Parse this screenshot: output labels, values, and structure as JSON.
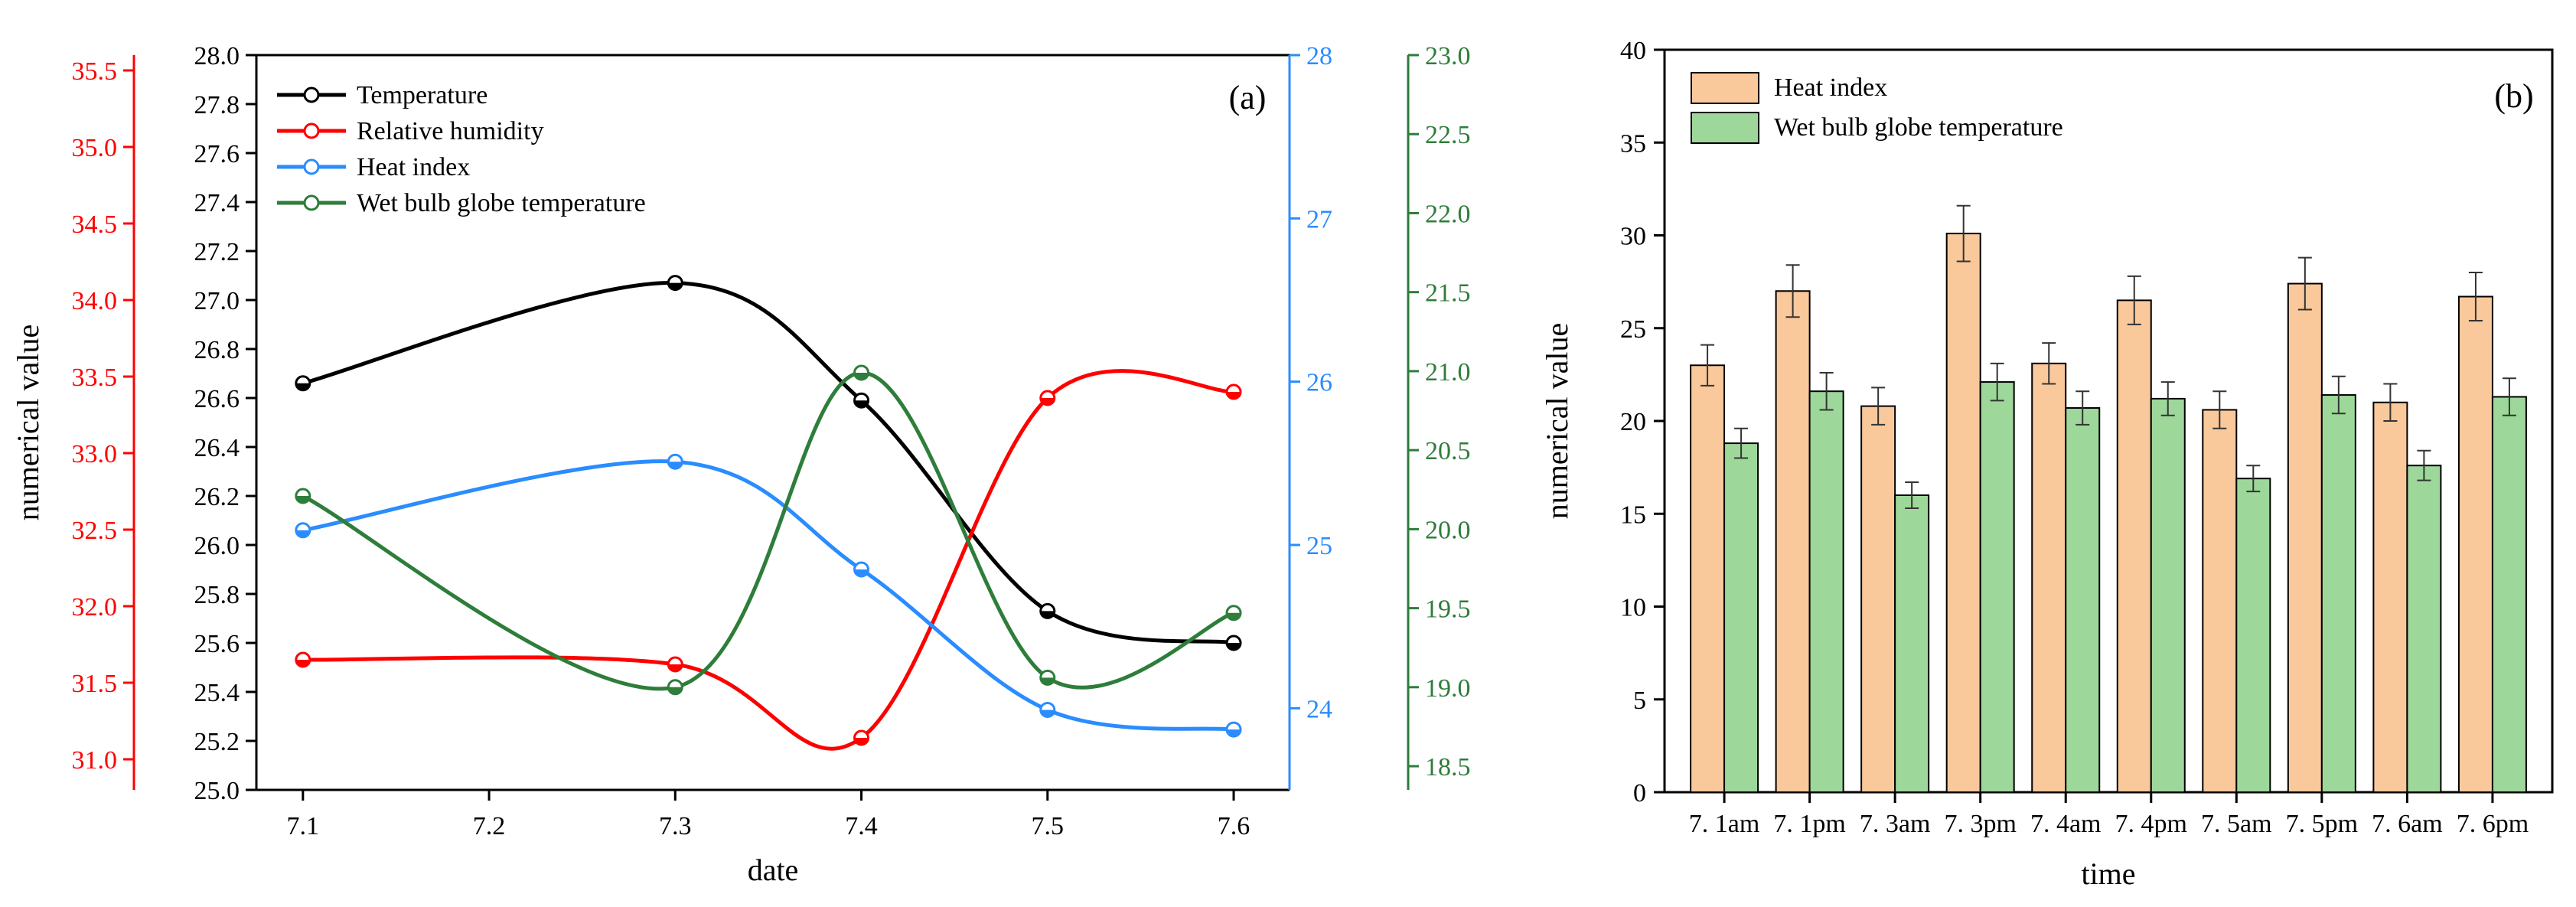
{
  "chart_data": [
    {
      "id": "a",
      "type": "line",
      "panel_label": "(a)",
      "xlabel": "date",
      "ylabel": "numerical value",
      "categories": [
        "7.1",
        "7.3",
        "7.4",
        "7.5",
        "7.6"
      ],
      "x_tick_labels": [
        "7.1",
        "7.2",
        "7.3",
        "7.4",
        "7.5",
        "7.6"
      ],
      "x_tick_values": [
        0,
        1,
        2,
        3,
        4,
        5
      ],
      "x_point_positions": [
        0,
        2,
        3,
        4,
        5
      ],
      "xlim": [
        -0.25,
        5.3
      ],
      "axes": {
        "temperature": {
          "color": "#000000",
          "ylim": [
            25.0,
            28.0
          ],
          "ticks": [
            "25.0",
            "25.2",
            "25.4",
            "25.6",
            "25.8",
            "26.0",
            "26.2",
            "26.4",
            "26.6",
            "26.8",
            "27.0",
            "27.2",
            "27.4",
            "27.6",
            "27.8",
            "28.0"
          ]
        },
        "humidity": {
          "color": "#ff0000",
          "ylim": [
            30.8,
            35.6
          ],
          "ticks": [
            "31.0",
            "31.5",
            "32.0",
            "32.5",
            "33.0",
            "33.5",
            "34.0",
            "34.5",
            "35.0",
            "35.5"
          ]
        },
        "heat_index": {
          "color": "#2a8cff",
          "ylim": [
            23.5,
            28.0
          ],
          "ticks": [
            "24",
            "25",
            "26",
            "27",
            "28"
          ]
        },
        "wbgt": {
          "color": "#2e7d3a",
          "ylim": [
            18.35,
            23.0
          ],
          "ticks": [
            "18.5",
            "19.0",
            "19.5",
            "20.0",
            "20.5",
            "21.0",
            "21.5",
            "22.0",
            "22.5",
            "23.0"
          ]
        }
      },
      "series": [
        {
          "key": "temperature",
          "name": "Temperature",
          "color": "#000000",
          "values": [
            26.66,
            27.07,
            26.59,
            25.73,
            25.6
          ]
        },
        {
          "key": "humidity",
          "name": "Relative humidity",
          "color": "#ff0000",
          "values": [
            31.65,
            31.62,
            31.14,
            33.36,
            33.4
          ]
        },
        {
          "key": "heat_index",
          "name": "Heat index",
          "color": "#2a8cff",
          "values": [
            25.09,
            25.51,
            24.85,
            23.99,
            23.87
          ]
        },
        {
          "key": "wbgt",
          "name": "Wet bulb globe temperature",
          "color": "#2e7d3a",
          "values": [
            20.21,
            19.0,
            20.99,
            19.06,
            19.47
          ]
        }
      ]
    },
    {
      "id": "b",
      "type": "bar",
      "panel_label": "(b)",
      "xlabel": "time",
      "ylabel": "numerical value",
      "categories": [
        "7. 1am",
        "7. 1pm",
        "7. 3am",
        "7. 3pm",
        "7. 4am",
        "7. 4pm",
        "7. 5am",
        "7. 5pm",
        "7. 6am",
        "7. 6pm"
      ],
      "ylim": [
        0,
        40
      ],
      "y_ticks": [
        "0",
        "5",
        "10",
        "15",
        "20",
        "25",
        "30",
        "35",
        "40"
      ],
      "series": [
        {
          "name": "Heat index",
          "color": "#f9c89b",
          "values": [
            23.0,
            27.0,
            20.8,
            30.1,
            23.1,
            26.5,
            20.6,
            27.4,
            21.0,
            26.7
          ],
          "errors": [
            1.1,
            1.4,
            1.0,
            1.5,
            1.1,
            1.3,
            1.0,
            1.4,
            1.0,
            1.3
          ]
        },
        {
          "name": "Wet bulb globe temperature",
          "color": "#9dd89a",
          "values": [
            18.8,
            21.6,
            16.0,
            22.1,
            20.7,
            21.2,
            16.9,
            21.4,
            17.6,
            21.3
          ],
          "errors": [
            0.8,
            1.0,
            0.7,
            1.0,
            0.9,
            0.9,
            0.7,
            1.0,
            0.8,
            1.0
          ]
        }
      ]
    }
  ]
}
